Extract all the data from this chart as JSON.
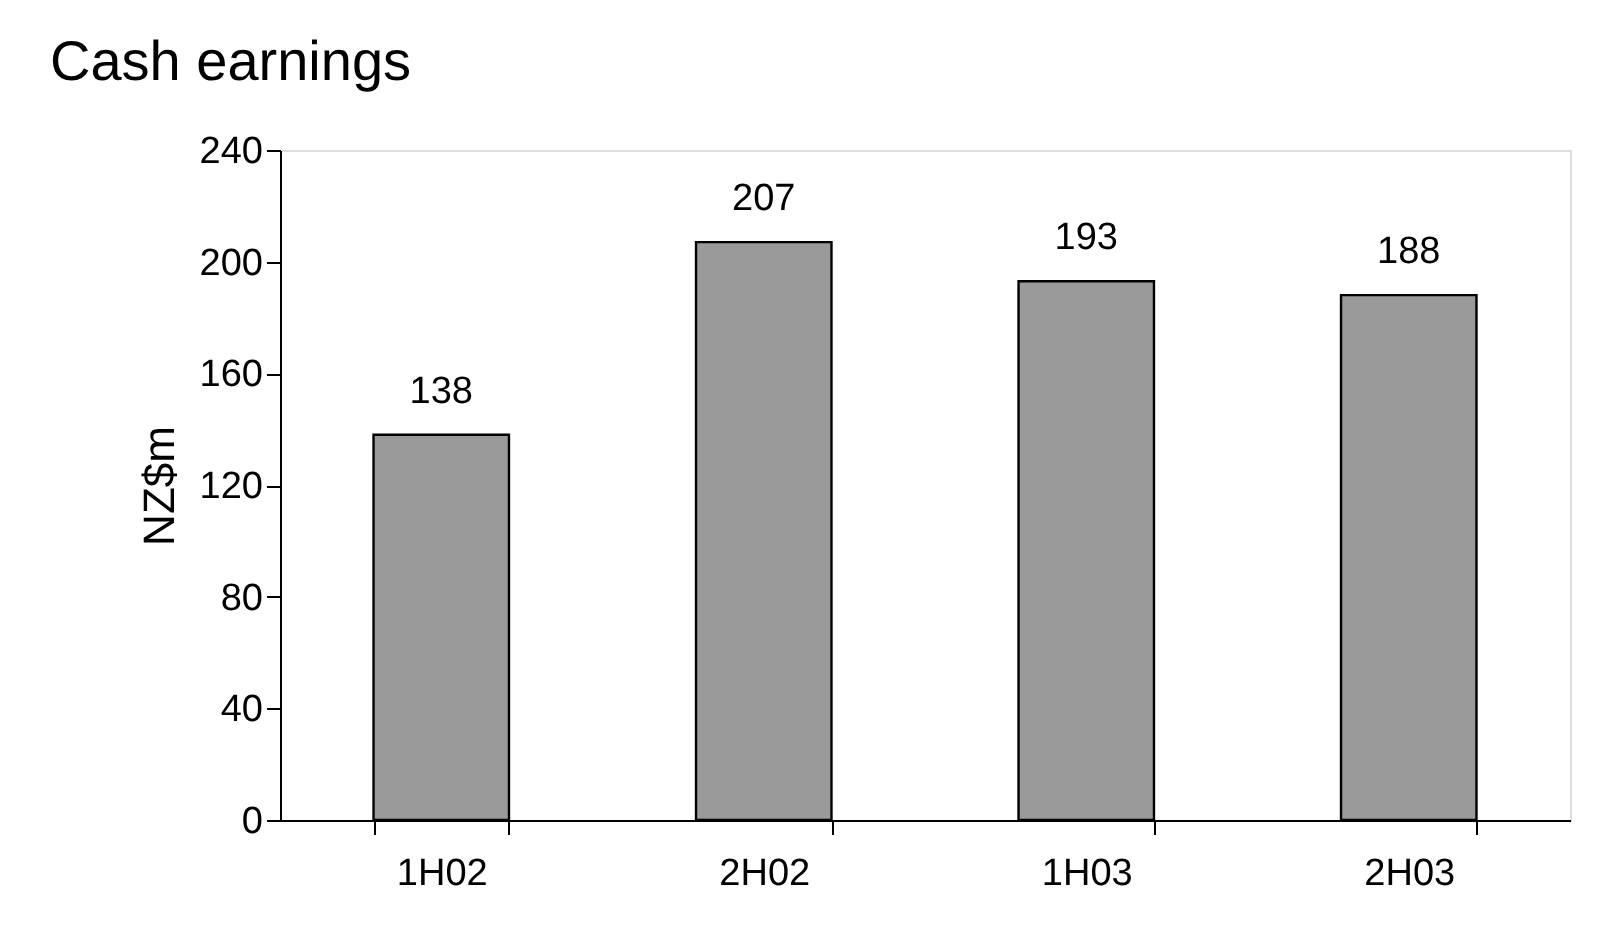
{
  "chart_data": {
    "type": "bar",
    "title": "Cash earnings",
    "ylabel": "NZ$m",
    "categories": [
      "1H02",
      "2H02",
      "1H03",
      "2H03"
    ],
    "values": [
      138,
      207,
      193,
      188
    ],
    "color": "#9a9a9a",
    "ylim": [
      0,
      240
    ],
    "yticks": [
      0,
      40,
      80,
      120,
      160,
      200,
      240
    ],
    "grid": false,
    "data_labels": true
  }
}
